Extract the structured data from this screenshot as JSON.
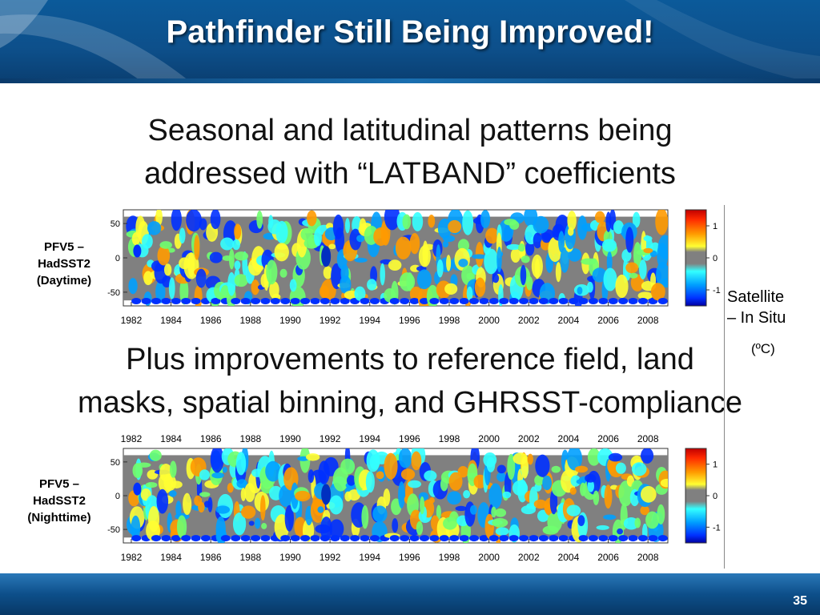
{
  "slide": {
    "title": "Pathfinder Still Being Improved!",
    "line1": "Seasonal and latitudinal patterns being",
    "line2": "addressed with “LATBAND” coefficients",
    "line3": "Plus improvements to reference field, land",
    "line4": "masks, spatial binning, and GHRSST-compliance",
    "unit_line1": "Satellite",
    "unit_line2": "– In Situ",
    "unit_line3": "(ºC)",
    "page_number": "35"
  },
  "colors": {
    "header": "#0d4f8a",
    "land_mask": "#808080"
  },
  "chart_data": [
    {
      "type": "heatmap",
      "title": "",
      "panel_label": [
        "PFV5 –",
        "HadSST2",
        "(Daytime)"
      ],
      "xlabel": "",
      "ylabel": "",
      "xlim": [
        1981.6,
        2009.0
      ],
      "ylim": [
        -70,
        70
      ],
      "x_ticks": [
        1982,
        1984,
        1986,
        1988,
        1990,
        1992,
        1994,
        1996,
        1998,
        2000,
        2002,
        2004,
        2006,
        2008
      ],
      "x_tick_labels_top": false,
      "y_ticks": [
        50,
        0,
        -50
      ],
      "colorbar": {
        "ticks": [
          1,
          0,
          -1
        ],
        "range": [
          -1.5,
          1.5
        ]
      }
    },
    {
      "type": "heatmap",
      "title": "",
      "panel_label": [
        "PFV5 –",
        "HadSST2",
        "(Nighttime)"
      ],
      "xlabel": "",
      "ylabel": "",
      "xlim": [
        1981.6,
        2009.0
      ],
      "ylim": [
        -70,
        70
      ],
      "x_ticks": [
        1982,
        1984,
        1986,
        1988,
        1990,
        1992,
        1994,
        1996,
        1998,
        2000,
        2002,
        2004,
        2006,
        2008
      ],
      "x_tick_labels_top": true,
      "y_ticks": [
        50,
        0,
        -50
      ],
      "colorbar": {
        "ticks": [
          1,
          0,
          -1
        ],
        "range": [
          -1.5,
          1.5
        ]
      }
    }
  ]
}
